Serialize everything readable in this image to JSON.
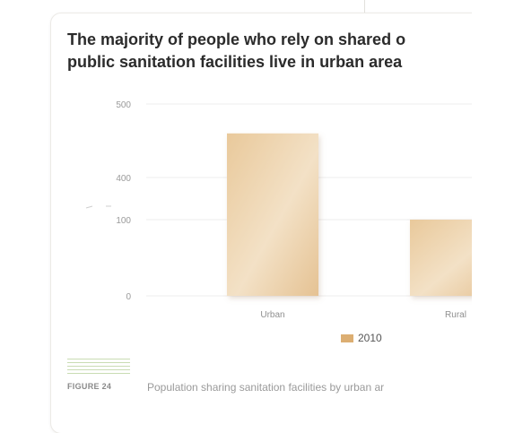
{
  "title_lines": [
    "The majority of people who rely on shared o",
    "public sanitation facilities live in urban area"
  ],
  "figure_tag": "FIGURE 24",
  "caption": "Population sharing sanitation facilities by urban ar",
  "colors": {
    "bar": "#e8c79b",
    "legend": "#dcae72",
    "grid": "#ececec"
  },
  "chart_data": {
    "type": "bar",
    "title": "The majority of people who rely on shared o public sanitation facilities live in urban area",
    "xlabel": "",
    "ylabel": "",
    "categories": [
      "Urban",
      "Rural"
    ],
    "series": [
      {
        "name": "2010",
        "values": [
          460,
          125
        ]
      }
    ],
    "y_ticks": [
      {
        "value": 0,
        "label": "0"
      },
      {
        "value": 100,
        "label": "100"
      },
      {
        "value": 400,
        "label": "400"
      },
      {
        "value": 500,
        "label": "500"
      }
    ],
    "y_axis_break": [
      100,
      400
    ],
    "ylim": [
      0,
      500
    ],
    "grid": true,
    "legend": "bottom-center"
  }
}
